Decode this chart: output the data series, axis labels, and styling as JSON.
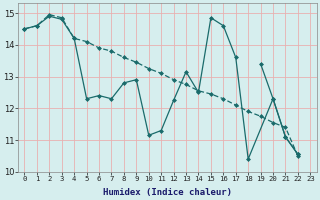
{
  "xlabel": "Humidex (Indice chaleur)",
  "xlim": [
    -0.5,
    23.5
  ],
  "ylim": [
    10,
    15.3
  ],
  "yticks": [
    10,
    11,
    12,
    13,
    14,
    15
  ],
  "xticks": [
    0,
    1,
    2,
    3,
    4,
    5,
    6,
    7,
    8,
    9,
    10,
    11,
    12,
    13,
    14,
    15,
    16,
    17,
    18,
    19,
    20,
    21,
    22,
    23
  ],
  "bg_color": "#d6eeee",
  "grid_color": "#f0f0f0",
  "line_color": "#1a6b6b",
  "series1": {
    "x": [
      0,
      1,
      2,
      3,
      4,
      5,
      6,
      7,
      8,
      9,
      10,
      11,
      12,
      13,
      14,
      15,
      16,
      17,
      18,
      20,
      21,
      22
    ],
    "y": [
      14.5,
      14.6,
      14.9,
      14.8,
      14.2,
      12.3,
      12.4,
      12.3,
      12.8,
      12.9,
      11.15,
      11.3,
      12.25,
      13.15,
      12.5,
      14.85,
      14.6,
      13.6,
      10.4,
      12.3,
      11.1,
      10.55
    ]
  },
  "series2": {
    "x": [
      0,
      1,
      2,
      3,
      4,
      5,
      6,
      7,
      8,
      9,
      10,
      11,
      12,
      13,
      14,
      15,
      16,
      17,
      18,
      19,
      20,
      21,
      22
    ],
    "y": [
      14.5,
      14.6,
      14.95,
      14.85,
      14.2,
      14.1,
      13.9,
      13.8,
      13.6,
      13.45,
      13.25,
      13.1,
      12.9,
      12.75,
      12.55,
      12.45,
      12.3,
      12.1,
      11.9,
      11.75,
      11.55,
      11.4,
      10.5
    ]
  },
  "series3": {
    "x": [
      19,
      20,
      21,
      22
    ],
    "y": [
      13.4,
      12.3,
      11.1,
      10.55
    ]
  }
}
